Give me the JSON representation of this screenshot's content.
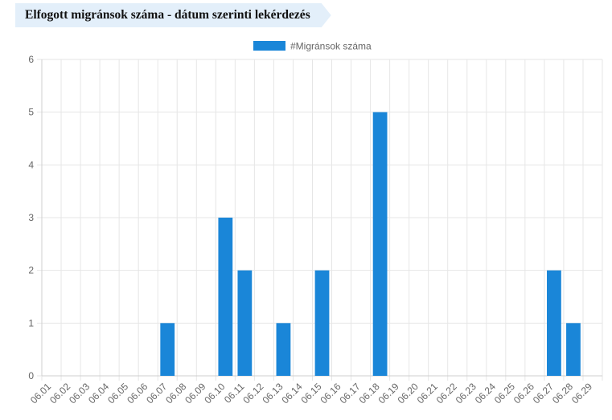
{
  "header": {
    "title": "Elfogott migránsok száma - dátum szerinti lekérdezés"
  },
  "chart_data": {
    "type": "bar",
    "title": "",
    "xlabel": "",
    "ylabel": "",
    "legend": {
      "position": "top"
    },
    "grid": true,
    "categories": [
      "06.01",
      "06.02",
      "06.03",
      "06.04",
      "06.05",
      "06.06",
      "06.07",
      "06.08",
      "06.09",
      "06.10",
      "06.11",
      "06.12",
      "06.13",
      "06.14",
      "06.15",
      "06.16",
      "06.17",
      "06.18",
      "06.19",
      "06.20",
      "06.21",
      "06.22",
      "06.23",
      "06.24",
      "06.25",
      "06.26",
      "06.27",
      "06.28",
      "06.29"
    ],
    "series": [
      {
        "name": "#Migránsok száma",
        "color": "#1a86d8",
        "values": [
          0,
          0,
          0,
          0,
          0,
          0,
          1,
          0,
          0,
          3,
          2,
          0,
          1,
          0,
          2,
          0,
          0,
          5,
          0,
          0,
          0,
          0,
          0,
          0,
          0,
          0,
          2,
          1,
          0
        ]
      }
    ],
    "ylim": [
      0,
      6
    ],
    "yticks": [
      0,
      1,
      2,
      3,
      4,
      5,
      6
    ]
  }
}
